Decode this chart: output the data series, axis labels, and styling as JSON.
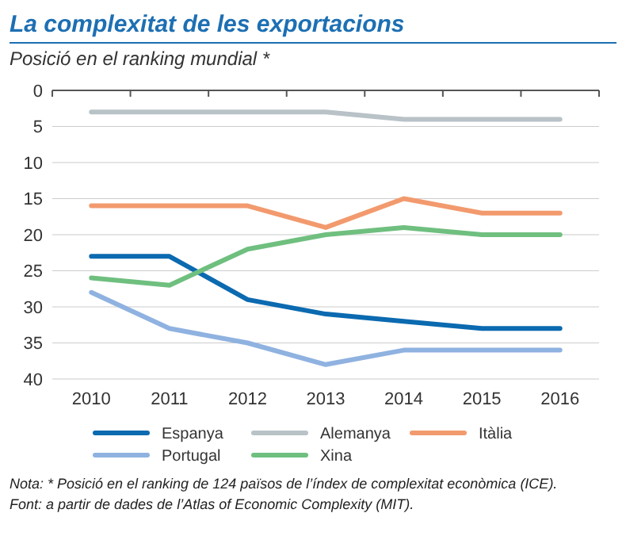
{
  "chart_data": {
    "type": "line",
    "title": "La complexitat de les exportacions",
    "subtitle": "Posició en el ranking mundial *",
    "categories": [
      "2010",
      "2011",
      "2012",
      "2013",
      "2014",
      "2015",
      "2016"
    ],
    "ylim": [
      40,
      0
    ],
    "yticks": [
      0,
      5,
      10,
      15,
      20,
      25,
      30,
      35,
      40
    ],
    "grid": "y",
    "legend": "bottom",
    "line_style": "solid",
    "marker": "none",
    "series": [
      {
        "name": "Espanya",
        "color": "#0b6ab0",
        "values": [
          23,
          23,
          29,
          31,
          32,
          33,
          33
        ]
      },
      {
        "name": "Alemanya",
        "color": "#b8c2c7",
        "values": [
          3,
          3,
          3,
          3,
          4,
          4,
          4
        ]
      },
      {
        "name": "Itàlia",
        "color": "#f29a6e",
        "values": [
          16,
          16,
          16,
          19,
          15,
          17,
          17
        ]
      },
      {
        "name": "Portugal",
        "color": "#8fb2e0",
        "values": [
          28,
          33,
          35,
          38,
          36,
          36,
          36
        ]
      },
      {
        "name": "Xina",
        "color": "#6fbf7f",
        "values": [
          26,
          27,
          22,
          20,
          19,
          20,
          20
        ]
      }
    ],
    "annotations": [
      "Nota: * Posició en el ranking de 124 països de l’índex de complexitat econòmica (ICE).",
      "Font: a partir de dades de l’Atlas of Economic Complexity (MIT)."
    ]
  }
}
